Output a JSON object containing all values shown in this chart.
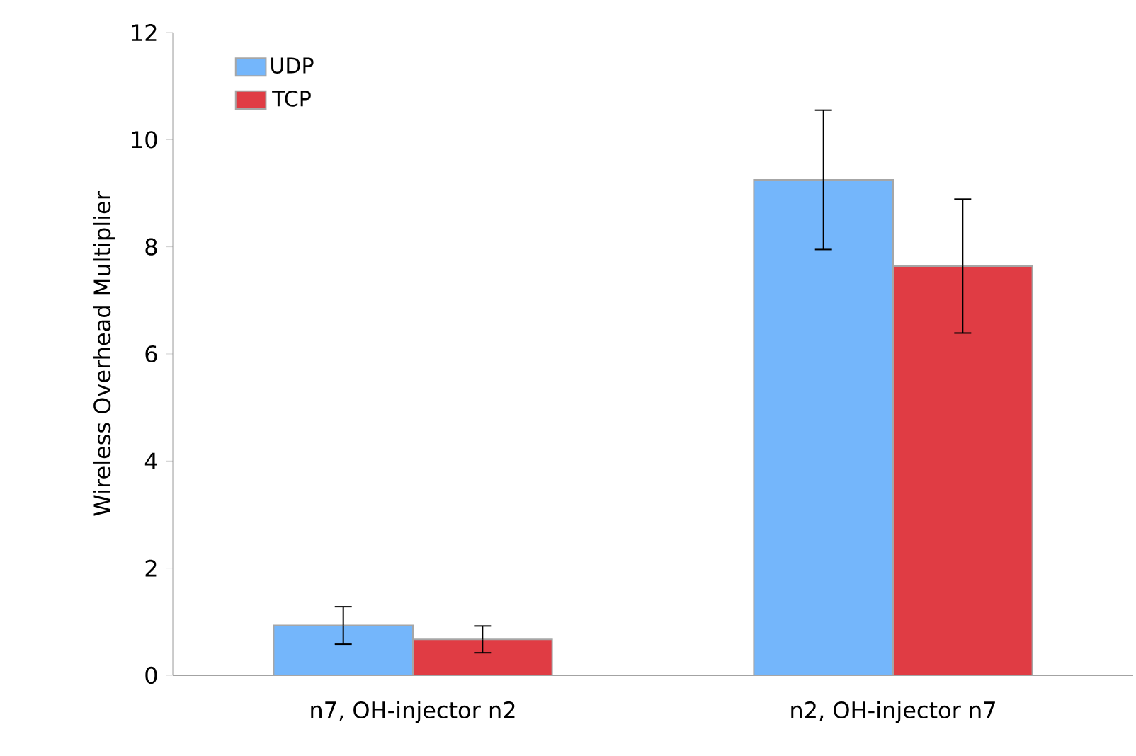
{
  "chart_data": {
    "type": "bar",
    "ylabel": "Wireless Overhead Multiplier",
    "categories": [
      "n7, OH-injector n2",
      "n2, OH-injector n7"
    ],
    "series": [
      {
        "name": "UDP",
        "color": "#74b6fb",
        "values": [
          0.93,
          9.25
        ],
        "errors": [
          0.35,
          1.3
        ]
      },
      {
        "name": "TCP",
        "color": "#e03c44",
        "values": [
          0.67,
          7.64
        ],
        "errors": [
          0.25,
          1.25
        ]
      }
    ],
    "ylim": [
      0,
      12
    ],
    "yticks": [
      0,
      2,
      4,
      6,
      8,
      10,
      12
    ],
    "grid": false,
    "legend": "top left"
  }
}
